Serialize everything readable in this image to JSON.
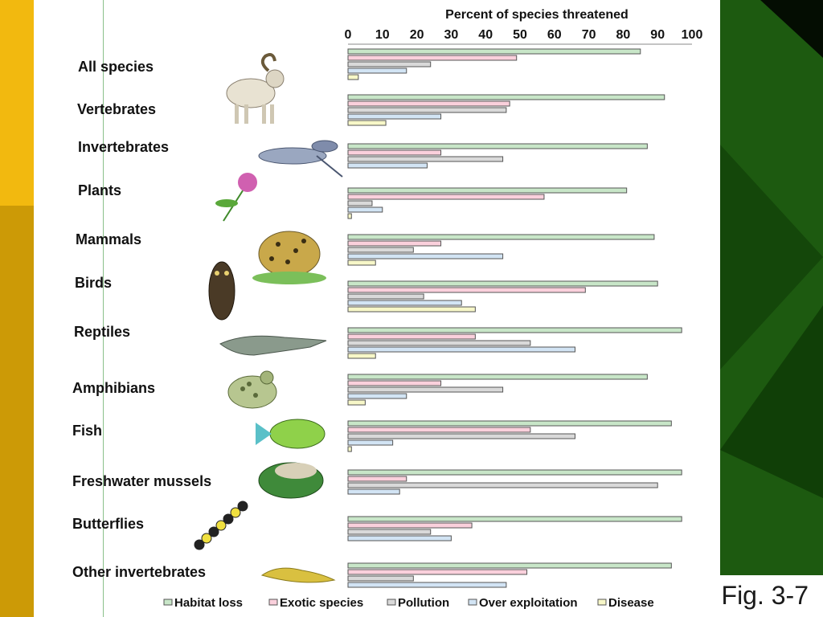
{
  "figure_label": "Fig. 3-7",
  "colors": {
    "panel_green": "#1d5a10",
    "band_yellow": "#f2b90f",
    "band_gold": "#cc9a06"
  },
  "chart_data": {
    "type": "bar",
    "orientation": "horizontal",
    "title": "Percent of species threatened",
    "xlim": [
      0,
      100
    ],
    "xticks": [
      0,
      10,
      20,
      30,
      40,
      50,
      60,
      70,
      80,
      90,
      100
    ],
    "legend_position": "bottom",
    "categories": [
      "All species",
      "Vertebrates",
      "Invertebrates",
      "Plants",
      "Mammals",
      "Birds",
      "Reptiles",
      "Amphibians",
      "Fish",
      "Freshwater mussels",
      "Butterflies",
      "Other invertebrates"
    ],
    "illustrations": [
      "ram-icon",
      "ram-icon",
      "crayfish-icon",
      "flower-icon",
      "leopard-icon",
      "owl-icon",
      "alligator-icon",
      "frog-icon",
      "fish-icon",
      "mussel-icon",
      "caterpillar-icon",
      "slug-icon"
    ],
    "series": [
      {
        "name": "Habitat loss",
        "color": "#c8e6c8",
        "values": [
          85,
          92,
          87,
          81,
          89,
          90,
          97,
          87,
          94,
          97,
          97,
          94
        ]
      },
      {
        "name": "Exotic species",
        "color": "#fad0dc",
        "values": [
          49,
          47,
          27,
          57,
          27,
          69,
          37,
          27,
          53,
          17,
          36,
          52
        ]
      },
      {
        "name": "Pollution",
        "color": "#d9d9d9",
        "values": [
          24,
          46,
          45,
          7,
          19,
          22,
          53,
          45,
          66,
          90,
          24,
          19
        ]
      },
      {
        "name": "Over exploitation",
        "color": "#d2e4f4",
        "values": [
          17,
          27,
          23,
          10,
          45,
          33,
          66,
          17,
          13,
          15,
          30,
          46
        ]
      },
      {
        "name": "Disease",
        "color": "#f7f7c8",
        "values": [
          3,
          11,
          0,
          1,
          8,
          37,
          8,
          5,
          1,
          0,
          0,
          0
        ]
      }
    ]
  }
}
